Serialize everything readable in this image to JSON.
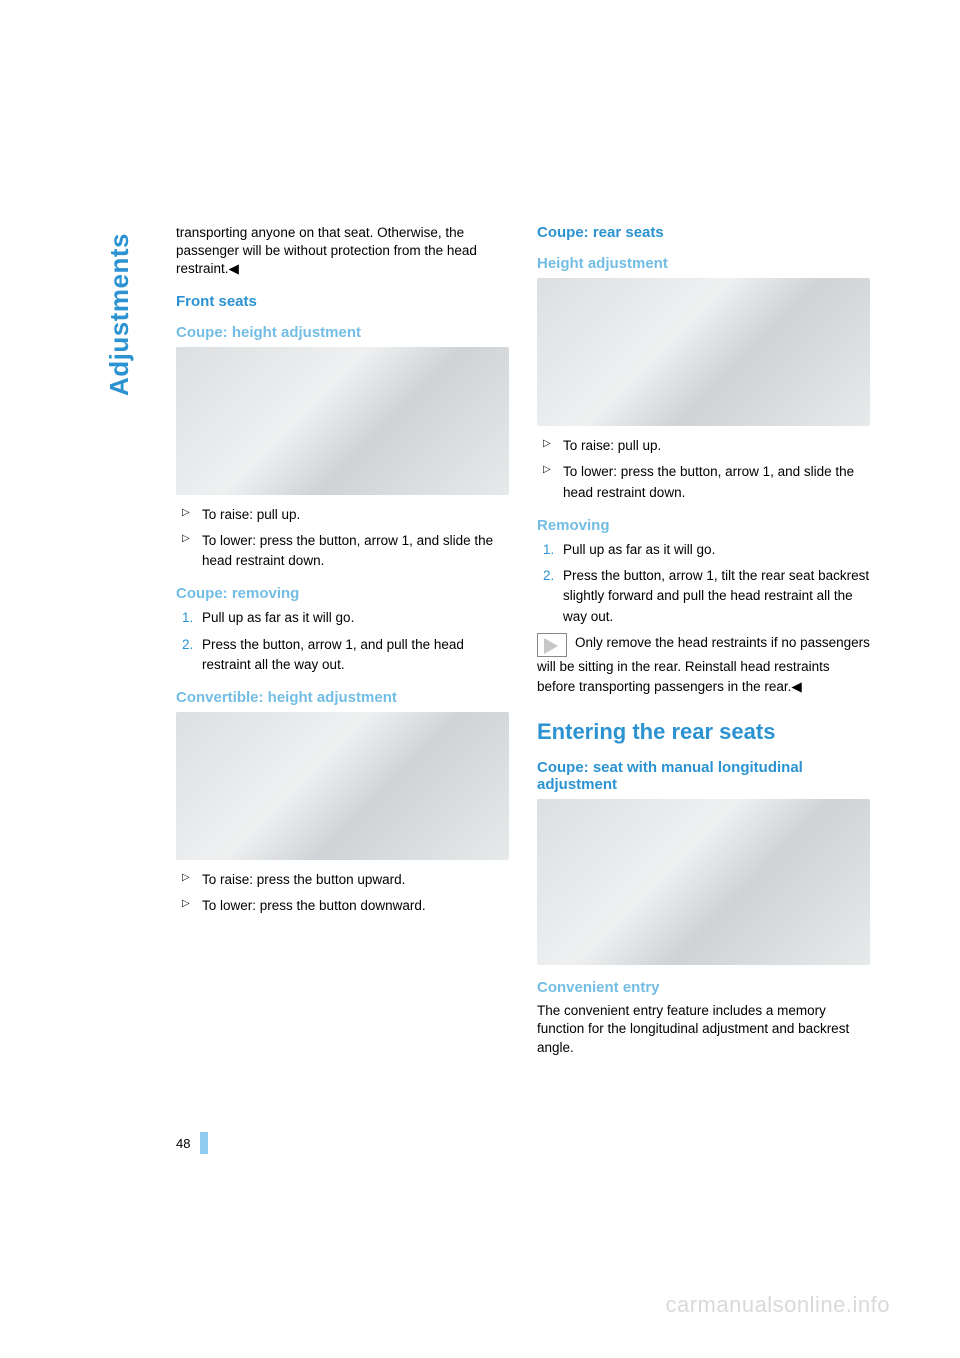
{
  "sidelabel": "Adjustments",
  "page_number": "48",
  "watermark": "carmanualsonline.info",
  "colors": {
    "brand_blue": "#2b93d1",
    "sub_blue": "#73bde4",
    "tick_blue": "#8fcbef",
    "watermark_gray": "#d9d9d9"
  },
  "left": {
    "intro": "transporting anyone on that seat. Otherwise, the passenger will be without protection from the head restraint.◀",
    "h_front": "Front seats",
    "h_coupe_height": "Coupe: height adjustment",
    "bullets_coupe": [
      "To raise: pull up.",
      "To lower: press the button, arrow 1, and slide the head restraint down."
    ],
    "h_coupe_removing": "Coupe: removing",
    "ol_coupe_removing": [
      "Pull up as far as it will go.",
      "Press the button, arrow 1, and pull the head restraint all the way out."
    ],
    "h_conv_height": "Convertible: height adjustment",
    "bullets_conv": [
      "To raise: press the button upward.",
      "To lower: press the button downward."
    ]
  },
  "right": {
    "h_rear": "Coupe: rear seats",
    "h_height": "Height adjustment",
    "bullets_rear": [
      "To raise: pull up.",
      "To lower: press the button, arrow 1, and slide the head restraint down."
    ],
    "h_removing": "Removing",
    "ol_removing": [
      "Pull up as far as it will go.",
      "Press the button, arrow 1, tilt the rear seat backrest slightly forward and pull the head restraint all the way out."
    ],
    "note": "Only remove the head restraints if no passengers will be sitting in the rear. Reinstall head restraints before transporting passengers in the rear.◀",
    "h_entering": "Entering the rear seats",
    "h_manual": "Coupe: seat with manual longitudinal adjustment",
    "h_convenient": "Convenient entry",
    "conv_text": "The convenient entry feature includes a memory function for the longitudinal adjustment and backrest angle."
  }
}
